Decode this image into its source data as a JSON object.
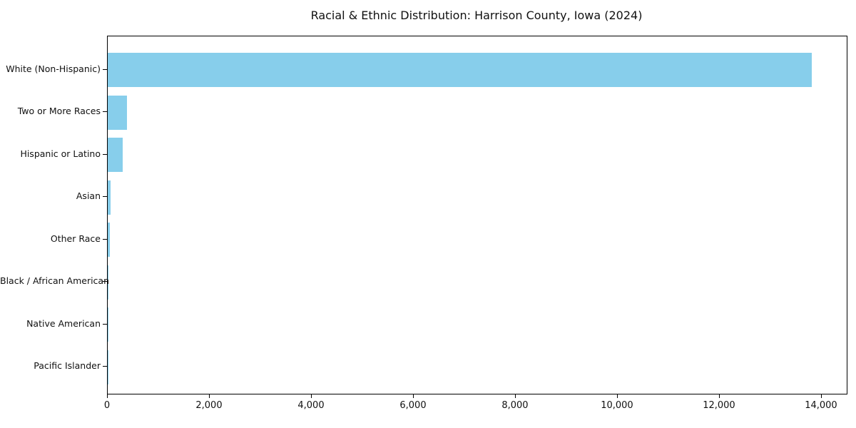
{
  "chart_data": {
    "type": "bar",
    "orientation": "horizontal",
    "title": "Racial & Ethnic Distribution: Harrison County, Iowa (2024)",
    "categories": [
      "White (Non-Hispanic)",
      "Two or More Races",
      "Hispanic or Latino",
      "Asian",
      "Other Race",
      "Black / African American",
      "Native American",
      "Pacific Islander"
    ],
    "values": [
      13800,
      375,
      300,
      50,
      35,
      15,
      8,
      3
    ],
    "xlabel": "",
    "ylabel": "",
    "xlim": [
      0,
      14490
    ],
    "xticks": [
      0,
      2000,
      4000,
      6000,
      8000,
      10000,
      12000,
      14000
    ],
    "xtick_labels": [
      "0",
      "2,000",
      "4,000",
      "6,000",
      "8,000",
      "10,000",
      "12,000",
      "14,000"
    ],
    "bar_color": "#87CEEB",
    "text_color": "#111111",
    "grid": false,
    "legend_position": "none",
    "frame": "box"
  }
}
